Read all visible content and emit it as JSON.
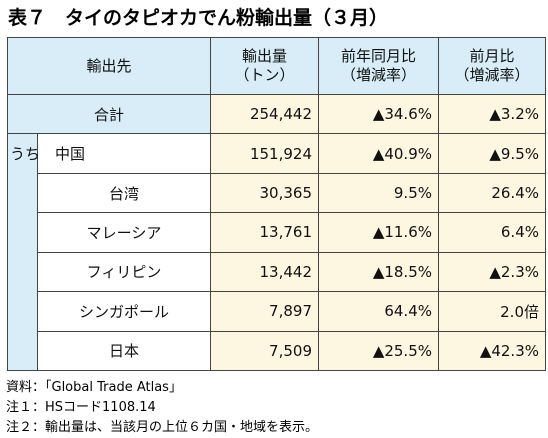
{
  "title": "表７　タイのタピオカでん粉輸出量（３月）",
  "table": {
    "header": [
      [
        "輸出先"
      ],
      [
        "輸出量",
        "（トン）"
      ],
      [
        "前年同月比",
        "（増減率）"
      ],
      [
        "前月比",
        "（増減率）"
      ]
    ],
    "rows": [
      [
        "合計",
        "254,442",
        "▲34.6%",
        "▲3.2%"
      ],
      [
        "うち　中国",
        "151,924",
        "▲40.9%",
        "▲9.5%"
      ],
      [
        "台湾",
        "30,365",
        "9.5%",
        "26.4%"
      ],
      [
        "マレーシア",
        "13,761",
        "▲11.6%",
        "6.4%"
      ],
      [
        "フィリピン",
        "13,442",
        "▲18.5%",
        "▲2.3%"
      ],
      [
        "シンガポール",
        "7,897",
        "64.4%",
        "2.0倍"
      ],
      [
        "日本",
        "7,509",
        "▲25.5%",
        "▲42.3%"
      ]
    ]
  },
  "notes": [
    "資料：「Global Trade Atlas」",
    "注１：HSコード1108.14",
    "注２：輸出量は、当該月の上位６カ国・地域を表示。"
  ]
}
